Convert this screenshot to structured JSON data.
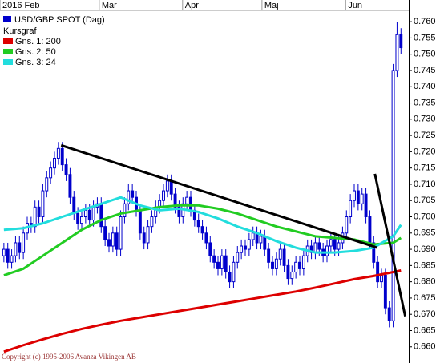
{
  "chart_data": {
    "type": "candlestick",
    "name": "USD/GBP SPOT (Dag)",
    "legend_title": "Kursgraf",
    "color": "#0000cc",
    "open": [
      0.688,
      0.69,
      0.686,
      0.688,
      0.692,
      0.689,
      0.695,
      0.698,
      0.697,
      0.703,
      0.7,
      0.708,
      0.712,
      0.715,
      0.718,
      0.721,
      0.716,
      0.713,
      0.706,
      0.701,
      0.698,
      0.7,
      0.702,
      0.699,
      0.703,
      0.704,
      0.697,
      0.693,
      0.691,
      0.695,
      0.69,
      0.7,
      0.704,
      0.708,
      0.706,
      0.702,
      0.695,
      0.692,
      0.697,
      0.7,
      0.703,
      0.705,
      0.708,
      0.711,
      0.707,
      0.703,
      0.7,
      0.704,
      0.706,
      0.702,
      0.699,
      0.697,
      0.695,
      0.692,
      0.688,
      0.686,
      0.684,
      0.688,
      0.683,
      0.68,
      0.686,
      0.689,
      0.691,
      0.69,
      0.693,
      0.695,
      0.692,
      0.694,
      0.69,
      0.686,
      0.684,
      0.687,
      0.69,
      0.685,
      0.681,
      0.683,
      0.686,
      0.684,
      0.688,
      0.691,
      0.689,
      0.692,
      0.69,
      0.688,
      0.691,
      0.693,
      0.69,
      0.692,
      0.695,
      0.7,
      0.705,
      0.708,
      0.704,
      0.707,
      0.7,
      0.692,
      0.686,
      0.68,
      0.682,
      0.672,
      0.668,
      0.745,
      0.756
    ],
    "high": [
      0.692,
      0.692,
      0.69,
      0.694,
      0.694,
      0.697,
      0.7,
      0.7,
      0.705,
      0.705,
      0.71,
      0.714,
      0.717,
      0.72,
      0.723,
      0.723,
      0.718,
      0.715,
      0.708,
      0.703,
      0.702,
      0.704,
      0.704,
      0.705,
      0.706,
      0.706,
      0.699,
      0.695,
      0.697,
      0.697,
      0.702,
      0.706,
      0.71,
      0.71,
      0.708,
      0.704,
      0.697,
      0.699,
      0.702,
      0.705,
      0.707,
      0.71,
      0.713,
      0.713,
      0.709,
      0.705,
      0.706,
      0.708,
      0.708,
      0.704,
      0.701,
      0.699,
      0.697,
      0.694,
      0.69,
      0.688,
      0.69,
      0.69,
      0.685,
      0.688,
      0.691,
      0.693,
      0.693,
      0.695,
      0.697,
      0.697,
      0.696,
      0.696,
      0.692,
      0.688,
      0.689,
      0.692,
      0.692,
      0.687,
      0.685,
      0.688,
      0.688,
      0.69,
      0.693,
      0.693,
      0.694,
      0.694,
      0.692,
      0.693,
      0.695,
      0.695,
      0.694,
      0.697,
      0.702,
      0.707,
      0.71,
      0.71,
      0.709,
      0.709,
      0.702,
      0.694,
      0.688,
      0.684,
      0.684,
      0.674,
      0.747,
      0.76,
      0.758
    ],
    "low": [
      0.686,
      0.684,
      0.684,
      0.686,
      0.687,
      0.687,
      0.693,
      0.695,
      0.695,
      0.698,
      0.698,
      0.706,
      0.71,
      0.713,
      0.716,
      0.714,
      0.711,
      0.704,
      0.699,
      0.696,
      0.696,
      0.698,
      0.697,
      0.697,
      0.701,
      0.695,
      0.691,
      0.689,
      0.689,
      0.688,
      0.688,
      0.698,
      0.702,
      0.704,
      0.7,
      0.693,
      0.69,
      0.69,
      0.695,
      0.698,
      0.701,
      0.703,
      0.706,
      0.705,
      0.701,
      0.698,
      0.698,
      0.702,
      0.7,
      0.697,
      0.695,
      0.693,
      0.69,
      0.686,
      0.684,
      0.682,
      0.682,
      0.681,
      0.678,
      0.678,
      0.684,
      0.687,
      0.688,
      0.688,
      0.691,
      0.69,
      0.69,
      0.688,
      0.684,
      0.682,
      0.682,
      0.685,
      0.683,
      0.679,
      0.679,
      0.681,
      0.682,
      0.682,
      0.686,
      0.687,
      0.687,
      0.688,
      0.686,
      0.686,
      0.689,
      0.688,
      0.688,
      0.69,
      0.693,
      0.698,
      0.703,
      0.702,
      0.702,
      0.698,
      0.69,
      0.684,
      0.678,
      0.678,
      0.67,
      0.666,
      0.666,
      0.743,
      0.75
    ],
    "close": [
      0.69,
      0.686,
      0.688,
      0.692,
      0.689,
      0.695,
      0.698,
      0.697,
      0.703,
      0.7,
      0.708,
      0.712,
      0.715,
      0.718,
      0.721,
      0.716,
      0.713,
      0.706,
      0.701,
      0.698,
      0.7,
      0.702,
      0.699,
      0.703,
      0.704,
      0.697,
      0.693,
      0.691,
      0.695,
      0.69,
      0.7,
      0.704,
      0.708,
      0.706,
      0.702,
      0.695,
      0.692,
      0.697,
      0.7,
      0.703,
      0.705,
      0.708,
      0.711,
      0.707,
      0.703,
      0.7,
      0.704,
      0.706,
      0.702,
      0.699,
      0.697,
      0.695,
      0.692,
      0.688,
      0.686,
      0.684,
      0.688,
      0.683,
      0.68,
      0.686,
      0.689,
      0.691,
      0.69,
      0.693,
      0.695,
      0.692,
      0.694,
      0.69,
      0.686,
      0.684,
      0.687,
      0.69,
      0.685,
      0.681,
      0.683,
      0.686,
      0.684,
      0.688,
      0.691,
      0.689,
      0.692,
      0.69,
      0.688,
      0.691,
      0.693,
      0.69,
      0.692,
      0.695,
      0.7,
      0.705,
      0.708,
      0.704,
      0.707,
      0.7,
      0.692,
      0.686,
      0.68,
      0.682,
      0.672,
      0.668,
      0.745,
      0.756,
      0.752
    ],
    "moving_averages": [
      {
        "name": "Gns. 1: 200",
        "color": "#dd0000",
        "x": [
          0,
          5,
          10,
          15,
          20,
          25,
          30,
          35,
          40,
          45,
          50,
          55,
          60,
          65,
          70,
          75,
          80,
          85,
          90,
          95,
          100,
          102
        ],
        "values": [
          0.6585,
          0.6605,
          0.6623,
          0.664,
          0.6655,
          0.6668,
          0.668,
          0.669,
          0.67,
          0.671,
          0.672,
          0.673,
          0.674,
          0.675,
          0.676,
          0.677,
          0.6782,
          0.6795,
          0.6808,
          0.6818,
          0.683,
          0.6835
        ]
      },
      {
        "name": "Gns. 2: 50",
        "color": "#22cc22",
        "x": [
          0,
          5,
          10,
          15,
          20,
          25,
          30,
          35,
          40,
          45,
          50,
          55,
          60,
          65,
          70,
          75,
          80,
          85,
          90,
          95,
          100,
          102
        ],
        "values": [
          0.682,
          0.684,
          0.688,
          0.692,
          0.696,
          0.699,
          0.701,
          0.702,
          0.703,
          0.7035,
          0.7035,
          0.7025,
          0.701,
          0.699,
          0.697,
          0.6955,
          0.694,
          0.6935,
          0.693,
          0.6915,
          0.692,
          0.6935
        ]
      },
      {
        "name": "Gns. 3: 24",
        "color": "#22dddd",
        "x": [
          0,
          5,
          10,
          15,
          20,
          25,
          30,
          35,
          40,
          45,
          50,
          55,
          60,
          65,
          70,
          75,
          80,
          85,
          90,
          95,
          100,
          102
        ],
        "values": [
          0.696,
          0.6965,
          0.698,
          0.7,
          0.702,
          0.704,
          0.706,
          0.7035,
          0.702,
          0.7025,
          0.7015,
          0.6995,
          0.697,
          0.695,
          0.6925,
          0.6905,
          0.689,
          0.689,
          0.6895,
          0.6905,
          0.694,
          0.6975
        ]
      }
    ],
    "trendlines": [
      {
        "color": "#000000",
        "x": [
          14.7,
          95.9
        ],
        "values": [
          0.722,
          0.6905
        ]
      },
      {
        "color": "#000000",
        "x": [
          95.3,
          103.1
        ],
        "values": [
          0.7132,
          0.6694
        ]
      }
    ],
    "xlim": [
      -1,
      104
    ],
    "ylim": [
      0.656,
      0.762
    ],
    "xticks": [
      {
        "value": -1,
        "label": "2016 Feb"
      },
      {
        "value": 24.5,
        "label": "Mar"
      },
      {
        "value": 45.9,
        "label": "Apr"
      },
      {
        "value": 66.3,
        "label": "Maj"
      },
      {
        "value": 87.8,
        "label": "Jun"
      }
    ],
    "yticks": [
      {
        "value": 0.66,
        "label": "0.660"
      },
      {
        "value": 0.665,
        "label": "0.665"
      },
      {
        "value": 0.67,
        "label": "0.670"
      },
      {
        "value": 0.675,
        "label": "0.675"
      },
      {
        "value": 0.68,
        "label": "0.680"
      },
      {
        "value": 0.685,
        "label": "0.685"
      },
      {
        "value": 0.69,
        "label": "0.690"
      },
      {
        "value": 0.695,
        "label": "0.695"
      },
      {
        "value": 0.7,
        "label": "0.700"
      },
      {
        "value": 0.705,
        "label": "0.705"
      },
      {
        "value": 0.71,
        "label": "0.710"
      },
      {
        "value": 0.715,
        "label": "0.715"
      },
      {
        "value": 0.72,
        "label": "0.720"
      },
      {
        "value": 0.725,
        "label": "0.725"
      },
      {
        "value": 0.73,
        "label": "0.730"
      },
      {
        "value": 0.735,
        "label": "0.735"
      },
      {
        "value": 0.74,
        "label": "0.740"
      },
      {
        "value": 0.745,
        "label": "0.745"
      },
      {
        "value": 0.75,
        "label": "0.750"
      },
      {
        "value": 0.755,
        "label": "0.755"
      },
      {
        "value": 0.76,
        "label": "0.760"
      }
    ],
    "copyright": "Copyright (c) 1995-2006 Avanza Vikingen AB"
  }
}
